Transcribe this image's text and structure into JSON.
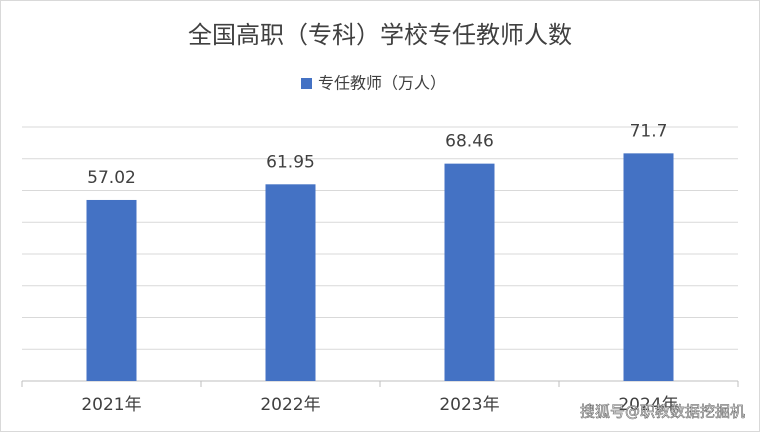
{
  "chart_data": {
    "type": "bar",
    "title": "全国高职（专科）学校专任教师人数",
    "categories": [
      "2021年",
      "2022年",
      "2023年",
      "2024年"
    ],
    "series": [
      {
        "name": "专任教师（万人）",
        "color": "#4472c4",
        "values": [
          57.02,
          61.95,
          68.46,
          71.7
        ]
      }
    ],
    "ylim": [
      0,
      80
    ],
    "yticks": [
      0,
      10,
      20,
      30,
      40,
      50,
      60,
      70,
      80
    ],
    "grid": true,
    "legend": "top",
    "watermark": "搜狐号@职教数据挖掘机"
  }
}
